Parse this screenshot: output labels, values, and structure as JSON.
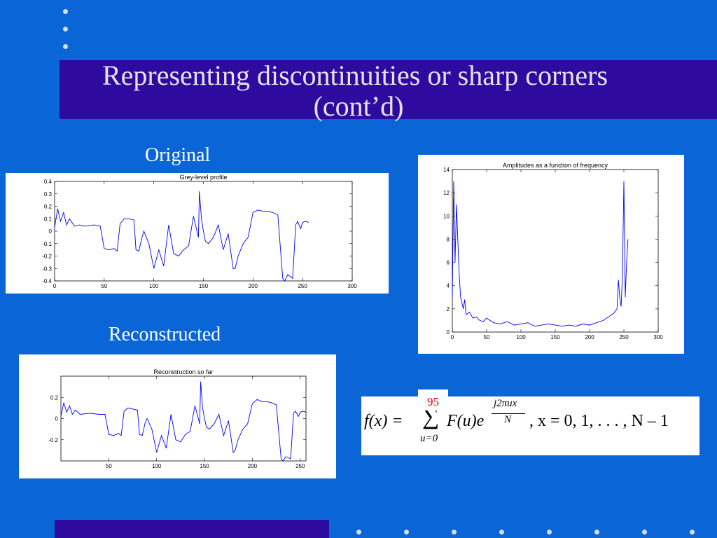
{
  "slide": {
    "title_line1": "Representing discontinuities or sharp corners",
    "title_line2": "(cont’d)",
    "caption_original": "Original",
    "caption_reconstructed": "Reconstructed",
    "page_number": "95",
    "colors": {
      "background": "#0a66d6",
      "band": "#2f0a9e",
      "page_number": "#e00000",
      "plot_line": "#0000ff"
    }
  },
  "formula": {
    "lhs": "f(x) =",
    "sum_lower": "u=0",
    "term": "F(u)e",
    "exp_numerator": "j2πux",
    "exp_denominator": "N",
    "tail": ", x = 0, 1, . . . , N – 1"
  },
  "chart_data": [
    {
      "type": "line",
      "title": "Grey-level profile",
      "xlabel": "",
      "ylabel": "",
      "xlim": [
        0,
        300
      ],
      "ylim": [
        -0.4,
        0.4
      ],
      "xticks": [
        "0",
        "50",
        "100",
        "150",
        "200",
        "250",
        "300"
      ],
      "yticks": [
        "0.4",
        "0.3",
        "0.2",
        "0.1",
        "0",
        "-0.1",
        "-0.2",
        "-0.3",
        "-0.4"
      ],
      "grid": false,
      "series": [
        {
          "x": [
            0,
            3,
            6,
            9,
            12,
            15,
            20,
            25,
            30,
            40,
            46,
            50,
            55,
            60,
            63,
            66,
            70,
            75,
            80,
            82,
            85,
            88,
            90,
            95,
            100,
            105,
            110,
            115,
            120,
            125,
            130,
            135,
            140,
            145,
            146,
            148,
            150,
            152,
            155,
            160,
            165,
            170,
            175,
            180,
            182,
            185,
            190,
            195,
            200,
            205,
            210,
            215,
            220,
            225,
            230,
            232,
            235,
            240,
            243,
            245,
            248,
            250,
            253,
            256
          ],
          "y": [
            0.03,
            0.18,
            0.08,
            0.15,
            0.05,
            0.1,
            0.04,
            0.05,
            0.04,
            0.05,
            0.04,
            -0.14,
            -0.15,
            -0.14,
            -0.16,
            0.06,
            0.1,
            0.1,
            0.09,
            -0.15,
            -0.16,
            -0.05,
            0.0,
            -0.1,
            -0.3,
            -0.15,
            -0.28,
            0.05,
            -0.18,
            -0.2,
            -0.15,
            -0.12,
            0.12,
            -0.05,
            0.32,
            0.1,
            0.0,
            -0.08,
            -0.1,
            -0.05,
            0.05,
            -0.15,
            -0.02,
            -0.3,
            -0.3,
            -0.2,
            -0.1,
            -0.05,
            0.15,
            0.17,
            0.16,
            0.16,
            0.15,
            0.13,
            -0.38,
            -0.4,
            -0.35,
            -0.38,
            0.05,
            0.08,
            0.02,
            0.07,
            0.08,
            0.07
          ]
        }
      ]
    },
    {
      "type": "line",
      "title": "Amplitudes as a function of frequency",
      "xlabel": "",
      "ylabel": "",
      "xlim": [
        0,
        300
      ],
      "ylim": [
        0,
        14
      ],
      "xticks": [
        "0",
        "50",
        "100",
        "150",
        "200",
        "250",
        "300"
      ],
      "yticks": [
        "14",
        "12",
        "10",
        "8",
        "6",
        "4",
        "2",
        "0"
      ],
      "grid": false,
      "series": [
        {
          "x": [
            0,
            2,
            4,
            6,
            8,
            10,
            12,
            14,
            16,
            18,
            20,
            25,
            30,
            35,
            40,
            45,
            50,
            60,
            70,
            80,
            90,
            100,
            110,
            120,
            130,
            140,
            150,
            160,
            170,
            180,
            190,
            200,
            210,
            220,
            230,
            235,
            240,
            242,
            244,
            246,
            248,
            250,
            252,
            254,
            256
          ],
          "y": [
            3,
            13,
            6,
            11,
            8,
            5,
            3,
            2.5,
            2,
            2.8,
            1.5,
            1.7,
            1.2,
            1.3,
            1,
            0.9,
            1.2,
            0.8,
            0.7,
            0.9,
            0.6,
            0.7,
            0.8,
            0.5,
            0.6,
            0.7,
            0.6,
            0.5,
            0.6,
            0.5,
            0.7,
            0.6,
            0.8,
            1,
            1.4,
            1.6,
            2,
            4.5,
            3,
            2.2,
            5,
            13,
            3,
            6,
            8
          ]
        }
      ]
    },
    {
      "type": "line",
      "title": "Reconstruction so far",
      "xlabel": "",
      "ylabel": "",
      "xlim": [
        0,
        256
      ],
      "ylim": [
        -0.4,
        0.4
      ],
      "xticks": [
        "50",
        "100",
        "150",
        "200",
        "250"
      ],
      "yticks": [
        "0.2",
        "0",
        "-0.2"
      ],
      "grid": false,
      "series": [
        {
          "x": [
            0,
            3,
            6,
            9,
            12,
            15,
            20,
            30,
            40,
            46,
            50,
            55,
            60,
            63,
            66,
            70,
            75,
            80,
            82,
            85,
            88,
            90,
            95,
            100,
            105,
            110,
            115,
            120,
            125,
            130,
            135,
            140,
            145,
            146,
            148,
            150,
            152,
            155,
            160,
            165,
            170,
            175,
            180,
            182,
            185,
            190,
            195,
            200,
            205,
            210,
            215,
            220,
            225,
            230,
            232,
            235,
            240,
            243,
            245,
            248,
            250,
            253,
            256
          ],
          "y": [
            0.02,
            0.15,
            0.06,
            0.12,
            0.04,
            0.08,
            0.04,
            0.05,
            0.04,
            0.04,
            -0.15,
            -0.16,
            -0.14,
            -0.16,
            0.07,
            0.1,
            0.09,
            0.08,
            -0.15,
            -0.16,
            -0.04,
            0.0,
            -0.1,
            -0.32,
            -0.16,
            -0.28,
            0.04,
            -0.2,
            -0.22,
            -0.15,
            -0.12,
            0.12,
            -0.05,
            0.35,
            0.1,
            0.0,
            -0.08,
            -0.1,
            -0.05,
            0.04,
            -0.16,
            -0.02,
            -0.32,
            -0.3,
            -0.2,
            -0.1,
            -0.05,
            0.14,
            0.18,
            0.16,
            0.16,
            0.15,
            0.13,
            -0.38,
            -0.4,
            -0.36,
            -0.38,
            0.05,
            0.07,
            0.02,
            0.06,
            0.07,
            0.06
          ]
        }
      ]
    }
  ]
}
